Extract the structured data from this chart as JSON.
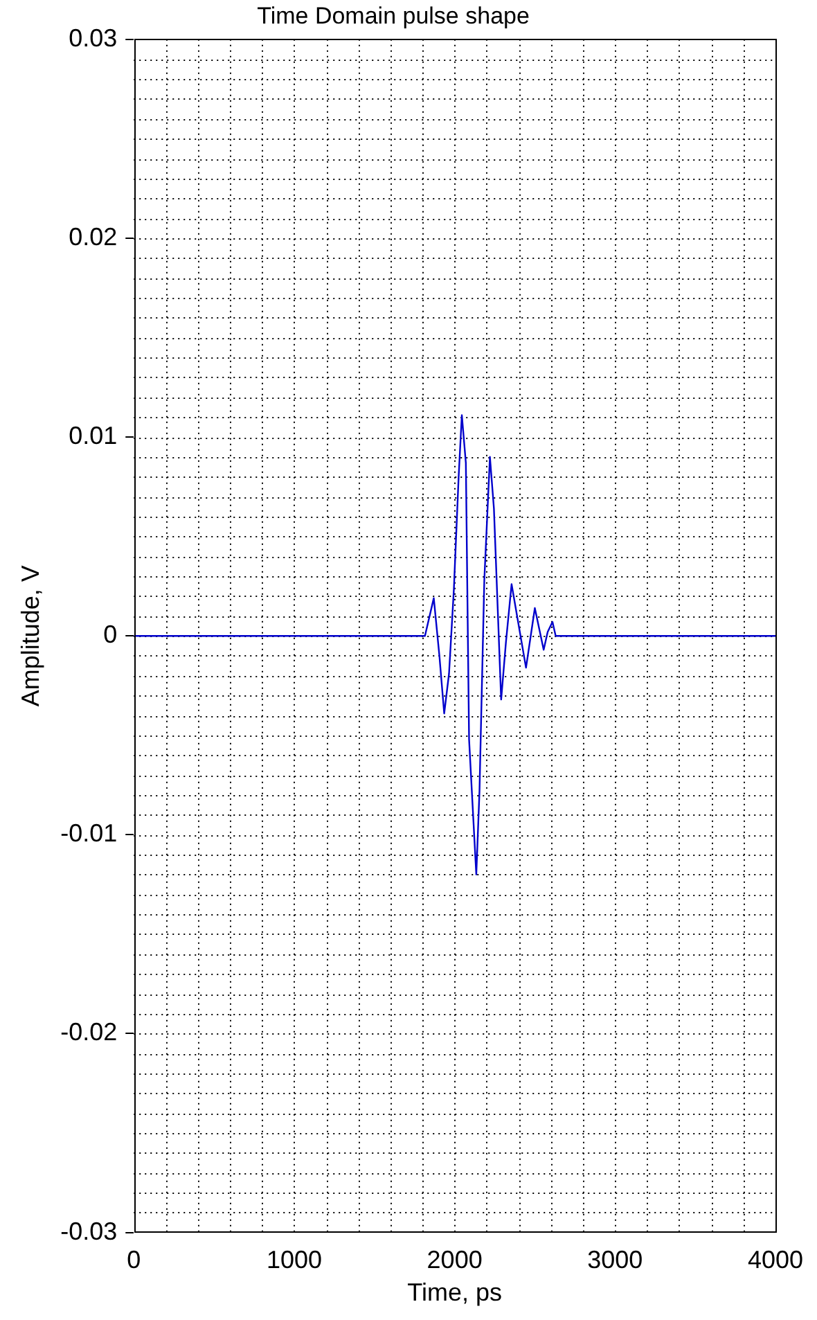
{
  "chart_data": {
    "type": "line",
    "title": "Time Domain pulse shape",
    "xlabel": "Time, ps",
    "ylabel": "Amplitude, V",
    "x": [
      0,
      1790,
      1815,
      1870,
      1905,
      1935,
      1965,
      1995,
      2025,
      2045,
      2070,
      2090,
      2135,
      2155,
      2185,
      2220,
      2245,
      2290,
      2320,
      2355,
      2385,
      2445,
      2500,
      2555,
      2580,
      2610,
      2630,
      4000
    ],
    "series": [
      {
        "color": "#0000cc",
        "values": [
          0,
          0,
          0,
          0.0019,
          -0.001,
          -0.0039,
          -0.0019,
          0.0023,
          0.008,
          0.0111,
          0.0087,
          -0.0052,
          -0.012,
          -0.0078,
          0.0028,
          0.009,
          0.0064,
          -0.0032,
          -0.0003,
          0.0026,
          0.0012,
          -0.0016,
          0.0014,
          -0.0007,
          0.0002,
          0.0007,
          0,
          0
        ]
      }
    ],
    "xlim": [
      0,
      4000
    ],
    "xticks": [
      0,
      1000,
      2000,
      3000,
      4000
    ],
    "ylim": [
      -0.03,
      0.03
    ],
    "yticks": [
      -0.03,
      -0.02,
      -0.01,
      0,
      0.01,
      0.02,
      0.03
    ],
    "grid": true,
    "marker": "none",
    "line_style": "solid",
    "legend": false
  }
}
